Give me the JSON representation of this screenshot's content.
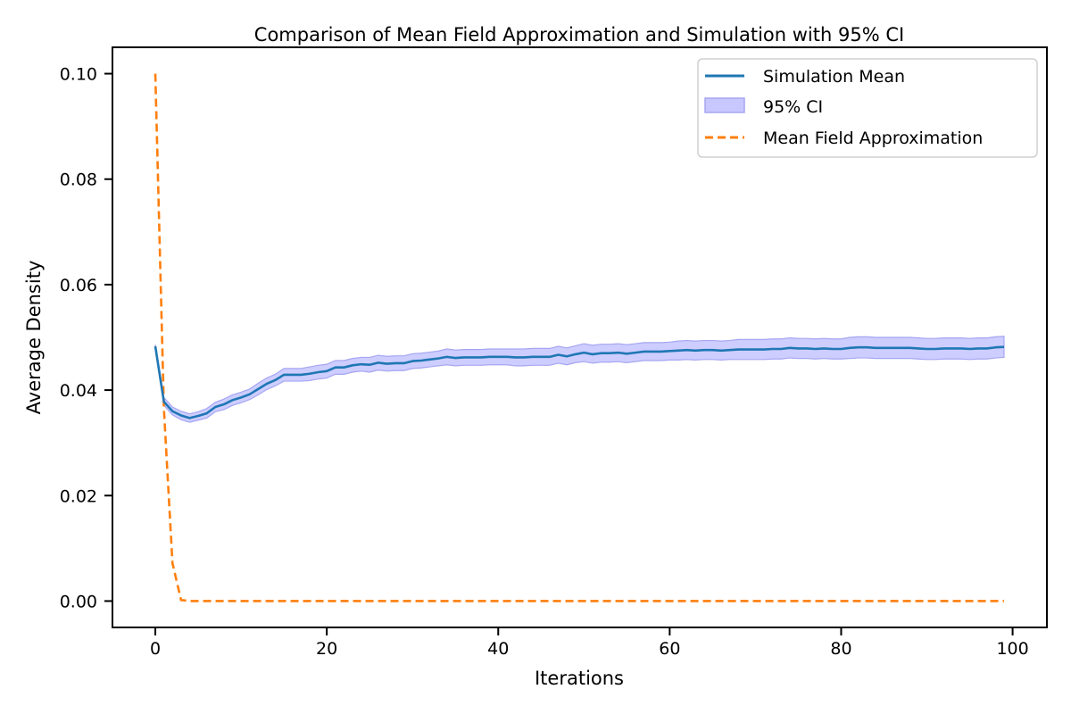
{
  "chart_data": {
    "type": "line",
    "title": "Comparison of Mean Field Approximation and Simulation with 95% CI",
    "xlabel": "Iterations",
    "ylabel": "Average Density",
    "xlim": [
      -5,
      104
    ],
    "ylim": [
      -0.005,
      0.105
    ],
    "xticks": [
      0,
      20,
      40,
      60,
      80,
      100
    ],
    "xtick_labels": [
      "0",
      "20",
      "40",
      "60",
      "80",
      "100"
    ],
    "yticks": [
      0.0,
      0.02,
      0.04,
      0.06,
      0.08,
      0.1
    ],
    "ytick_labels": [
      "0.00",
      "0.02",
      "0.04",
      "0.06",
      "0.08",
      "0.10"
    ],
    "grid": false,
    "legend_position": "top-right",
    "colors": {
      "simulation_mean": "#1f77b4",
      "ci_fill": "#c8c8ff",
      "ci_edge": "#a6a6f2",
      "mean_field": "#ff7f0e"
    },
    "series": [
      {
        "name": "Simulation Mean",
        "style": "solid",
        "x": [
          0,
          1,
          2,
          3,
          4,
          5,
          6,
          7,
          8,
          9,
          10,
          11,
          12,
          13,
          14,
          15,
          16,
          17,
          18,
          19,
          20,
          21,
          22,
          23,
          24,
          25,
          26,
          27,
          28,
          29,
          30,
          31,
          32,
          33,
          34,
          35,
          36,
          37,
          38,
          39,
          40,
          41,
          42,
          43,
          44,
          45,
          46,
          47,
          48,
          49,
          50,
          51,
          52,
          53,
          54,
          55,
          56,
          57,
          58,
          59,
          60,
          61,
          62,
          63,
          64,
          65,
          66,
          67,
          68,
          69,
          70,
          71,
          72,
          73,
          74,
          75,
          76,
          77,
          78,
          79,
          80,
          81,
          82,
          83,
          84,
          85,
          86,
          87,
          88,
          89,
          90,
          91,
          92,
          93,
          94,
          95,
          96,
          97,
          98,
          99
        ],
        "y": [
          0.0483,
          0.0378,
          0.036,
          0.0352,
          0.0347,
          0.0351,
          0.0356,
          0.0368,
          0.0373,
          0.0381,
          0.0386,
          0.0392,
          0.0402,
          0.0412,
          0.0419,
          0.0429,
          0.0429,
          0.0429,
          0.0431,
          0.0434,
          0.0436,
          0.0443,
          0.0443,
          0.0447,
          0.0449,
          0.0448,
          0.0452,
          0.045,
          0.0451,
          0.0451,
          0.0455,
          0.0456,
          0.0458,
          0.046,
          0.0463,
          0.0461,
          0.0462,
          0.0462,
          0.0462,
          0.0463,
          0.0463,
          0.0463,
          0.0462,
          0.0462,
          0.0463,
          0.0463,
          0.0463,
          0.0467,
          0.0464,
          0.0468,
          0.0471,
          0.0468,
          0.047,
          0.047,
          0.0471,
          0.0469,
          0.0471,
          0.0473,
          0.0473,
          0.0473,
          0.0474,
          0.0475,
          0.0476,
          0.0475,
          0.0476,
          0.0476,
          0.0475,
          0.0476,
          0.0477,
          0.0477,
          0.0477,
          0.0477,
          0.0478,
          0.0478,
          0.048,
          0.0479,
          0.0479,
          0.0478,
          0.0479,
          0.0478,
          0.0478,
          0.048,
          0.0481,
          0.0481,
          0.048,
          0.048,
          0.048,
          0.048,
          0.048,
          0.0479,
          0.0478,
          0.0478,
          0.0479,
          0.0479,
          0.0479,
          0.0478,
          0.0479,
          0.0479,
          0.0481,
          0.0482
        ]
      },
      {
        "name": "95% CI",
        "style": "band",
        "x": [
          0,
          1,
          2,
          3,
          4,
          5,
          6,
          7,
          8,
          9,
          10,
          11,
          12,
          13,
          14,
          15,
          16,
          17,
          18,
          19,
          20,
          21,
          22,
          23,
          24,
          25,
          26,
          27,
          28,
          29,
          30,
          31,
          32,
          33,
          34,
          35,
          36,
          37,
          38,
          39,
          40,
          41,
          42,
          43,
          44,
          45,
          46,
          47,
          48,
          49,
          50,
          51,
          52,
          53,
          54,
          55,
          56,
          57,
          58,
          59,
          60,
          61,
          62,
          63,
          64,
          65,
          66,
          67,
          68,
          69,
          70,
          71,
          72,
          73,
          74,
          75,
          76,
          77,
          78,
          79,
          80,
          81,
          82,
          83,
          84,
          85,
          86,
          87,
          88,
          89,
          90,
          91,
          92,
          93,
          94,
          95,
          96,
          97,
          98,
          99
        ],
        "lower": [
          0.048,
          0.0371,
          0.0353,
          0.0344,
          0.0339,
          0.0343,
          0.0347,
          0.0359,
          0.0363,
          0.0371,
          0.0376,
          0.0382,
          0.0391,
          0.0401,
          0.0408,
          0.0417,
          0.0417,
          0.0417,
          0.0418,
          0.0421,
          0.0423,
          0.043,
          0.043,
          0.0434,
          0.0436,
          0.0434,
          0.0438,
          0.0436,
          0.0437,
          0.0437,
          0.0441,
          0.0442,
          0.0444,
          0.0446,
          0.0448,
          0.0446,
          0.0447,
          0.0447,
          0.0447,
          0.0448,
          0.0448,
          0.0448,
          0.0446,
          0.0446,
          0.0447,
          0.0447,
          0.0447,
          0.0451,
          0.0448,
          0.0452,
          0.0454,
          0.0451,
          0.0453,
          0.0453,
          0.0454,
          0.0452,
          0.0454,
          0.0456,
          0.0456,
          0.0456,
          0.0457,
          0.0457,
          0.0458,
          0.0457,
          0.0458,
          0.0458,
          0.0457,
          0.0458,
          0.0458,
          0.0458,
          0.0458,
          0.0458,
          0.0459,
          0.0459,
          0.0461,
          0.046,
          0.046,
          0.0459,
          0.046,
          0.0459,
          0.0459,
          0.046,
          0.0461,
          0.0461,
          0.046,
          0.046,
          0.046,
          0.046,
          0.046,
          0.0459,
          0.0458,
          0.0458,
          0.0459,
          0.0459,
          0.0459,
          0.0458,
          0.0459,
          0.0459,
          0.0461,
          0.0462
        ],
        "upper": [
          0.0486,
          0.0386,
          0.0368,
          0.036,
          0.0355,
          0.0359,
          0.0365,
          0.0377,
          0.0383,
          0.0391,
          0.0396,
          0.0402,
          0.0413,
          0.0423,
          0.043,
          0.0441,
          0.0441,
          0.0441,
          0.0444,
          0.0447,
          0.0449,
          0.0456,
          0.0456,
          0.046,
          0.0462,
          0.0462,
          0.0466,
          0.0464,
          0.0465,
          0.0465,
          0.0469,
          0.047,
          0.0472,
          0.0474,
          0.0478,
          0.0476,
          0.0477,
          0.0477,
          0.0477,
          0.0478,
          0.0478,
          0.0478,
          0.0478,
          0.0478,
          0.0479,
          0.0479,
          0.0479,
          0.0483,
          0.048,
          0.0484,
          0.0488,
          0.0485,
          0.0487,
          0.0487,
          0.0488,
          0.0486,
          0.0488,
          0.049,
          0.049,
          0.049,
          0.0491,
          0.0493,
          0.0494,
          0.0493,
          0.0494,
          0.0494,
          0.0493,
          0.0494,
          0.0496,
          0.0496,
          0.0496,
          0.0496,
          0.0497,
          0.0497,
          0.0499,
          0.0498,
          0.0498,
          0.0497,
          0.0498,
          0.0497,
          0.0497,
          0.05,
          0.0501,
          0.0501,
          0.05,
          0.05,
          0.05,
          0.05,
          0.05,
          0.0499,
          0.0498,
          0.0498,
          0.0499,
          0.0499,
          0.0499,
          0.0498,
          0.0499,
          0.0499,
          0.0501,
          0.0502
        ]
      },
      {
        "name": "Mean Field Approximation",
        "style": "dashed",
        "x": [
          0,
          1,
          2,
          3,
          4,
          5,
          6,
          7,
          8,
          9,
          10,
          11,
          12,
          13,
          14,
          15,
          16,
          17,
          18,
          19,
          20,
          21,
          22,
          23,
          24,
          25,
          26,
          27,
          28,
          29,
          30,
          31,
          32,
          33,
          34,
          35,
          36,
          37,
          38,
          39,
          40,
          41,
          42,
          43,
          44,
          45,
          46,
          47,
          48,
          49,
          50,
          51,
          52,
          53,
          54,
          55,
          56,
          57,
          58,
          59,
          60,
          61,
          62,
          63,
          64,
          65,
          66,
          67,
          68,
          69,
          70,
          71,
          72,
          73,
          74,
          75,
          76,
          77,
          78,
          79,
          80,
          81,
          82,
          83,
          84,
          85,
          86,
          87,
          88,
          89,
          90,
          91,
          92,
          93,
          94,
          95,
          96,
          97,
          98,
          99
        ],
        "y": [
          0.1,
          0.0365,
          0.0072,
          0.0002,
          0,
          0,
          0,
          0,
          0,
          0,
          0,
          0,
          0,
          0,
          0,
          0,
          0,
          0,
          0,
          0,
          0,
          0,
          0,
          0,
          0,
          0,
          0,
          0,
          0,
          0,
          0,
          0,
          0,
          0,
          0,
          0,
          0,
          0,
          0,
          0,
          0,
          0,
          0,
          0,
          0,
          0,
          0,
          0,
          0,
          0,
          0,
          0,
          0,
          0,
          0,
          0,
          0,
          0,
          0,
          0,
          0,
          0,
          0,
          0,
          0,
          0,
          0,
          0,
          0,
          0,
          0,
          0,
          0,
          0,
          0,
          0,
          0,
          0,
          0,
          0,
          0,
          0,
          0,
          0,
          0,
          0,
          0,
          0,
          0,
          0,
          0,
          0,
          0,
          0,
          0,
          0,
          0,
          0,
          0,
          0
        ]
      }
    ]
  }
}
